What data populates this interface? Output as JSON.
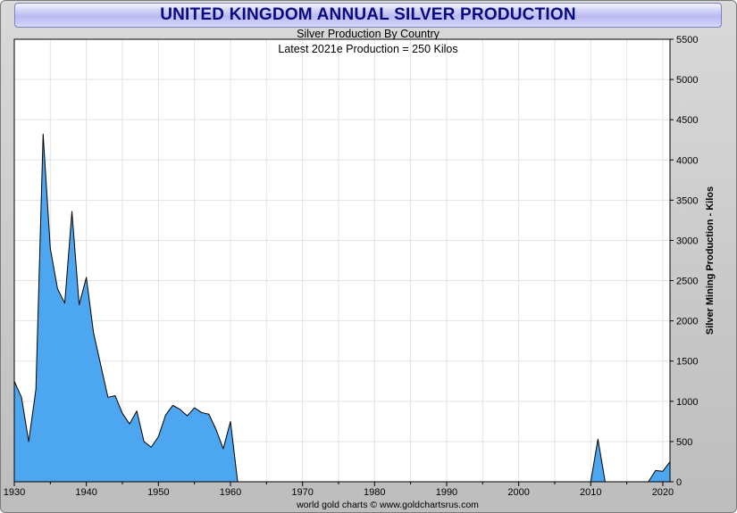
{
  "chart_data": {
    "type": "area",
    "title": "UNITED KINGDOM ANNUAL SILVER PRODUCTION",
    "subtitle": "Silver Production By Country",
    "annotation": "Latest 2021e Production = 250 Kilos",
    "ylabel": "Silver Mining Production - Kilos",
    "credit": "world gold charts © www.goldchartsrus.com",
    "xlim": [
      1930,
      2021
    ],
    "ylim": [
      0,
      5500
    ],
    "x_ticks": [
      1930,
      1940,
      1950,
      1960,
      1970,
      1980,
      1990,
      2000,
      2010,
      2020
    ],
    "y_ticks": [
      0,
      500,
      1000,
      1500,
      2000,
      2500,
      3000,
      3500,
      4000,
      4500,
      5000,
      5500
    ],
    "grid": true,
    "fill_color": "#4da6f0",
    "line_color": "#000000",
    "x": [
      1930,
      1931,
      1932,
      1933,
      1934,
      1935,
      1936,
      1937,
      1938,
      1939,
      1940,
      1941,
      1942,
      1943,
      1944,
      1945,
      1946,
      1947,
      1948,
      1949,
      1950,
      1951,
      1952,
      1953,
      1954,
      1955,
      1956,
      1957,
      1958,
      1959,
      1960,
      1961,
      1962,
      2009,
      2010,
      2011,
      2012,
      2013,
      2017,
      2018,
      2019,
      2020,
      2021
    ],
    "y": [
      1250,
      1050,
      500,
      1150,
      4320,
      2900,
      2400,
      2220,
      3360,
      2200,
      2540,
      1850,
      1450,
      1050,
      1070,
      850,
      720,
      880,
      500,
      430,
      560,
      830,
      950,
      900,
      820,
      920,
      860,
      840,
      650,
      410,
      750,
      0,
      0,
      0,
      0,
      530,
      0,
      0,
      0,
      0,
      140,
      130,
      250
    ]
  }
}
